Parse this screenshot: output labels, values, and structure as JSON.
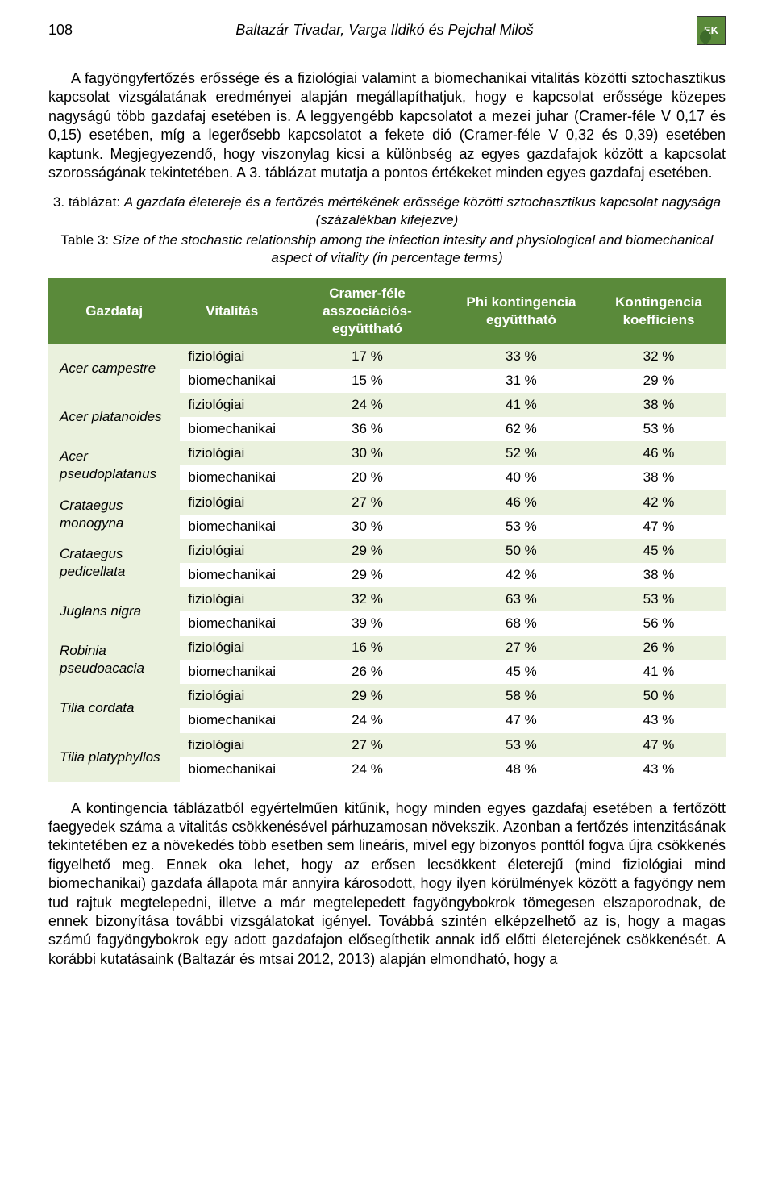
{
  "header": {
    "page_number": "108",
    "authors": "Baltazár Tivadar, Varga Ildikó és Pejchal Miloš",
    "logo_text": "EK"
  },
  "paragraphs": {
    "p1": "A fagyöngyfertőzés erőssége és a fiziológiai valamint a biomechanikai vitalitás közötti sztochasztikus kapcsolat vizsgálatának eredményei alapján megállapíthatjuk, hogy e kapcsolat erőssége közepes nagyságú több gazdafaj esetében is. A leggyengébb kapcsolatot a mezei juhar (Cramer-féle V 0,17 és 0,15) esetében, míg a legerősebb kapcsolatot a fekete dió (Cramer-féle V 0,32 és 0,39) esetében kaptunk. Megjegyezendő, hogy viszonylag kicsi a különbség az egyes gazdafajok között a kapcsolat szorosságának tekintetében. A 3. táblázat mutatja a pontos értékeket minden egyes gazdafaj esetében.",
    "p2": "A kontingencia táblázatból egyértelműen kitűnik, hogy minden egyes gazdafaj esetében a fertőzött faegyedek száma a vitalitás csökkenésével párhuzamosan növekszik. Azonban a fertőzés intenzitásának tekintetében ez a növekedés több esetben sem lineáris, mivel egy bizonyos ponttól fogva újra csökkenés figyelhető meg. Ennek oka lehet, hogy az erősen lecsökkent életerejű (mind fiziológiai mind biomechanikai) gazdafa állapota már annyira károsodott, hogy ilyen körülmények között a fagyöngy nem tud rajtuk megtelepedni, illetve a már megtelepedett fagyöngybokrok tömegesen elszaporodnak, de ennek bizonyítása további vizsgálatokat igényel. Továbbá szintén elképzelhető az is, hogy a magas számú fagyöngybokrok egy adott gazdafajon elősegíthetik annak idő előtti életerejének csökkenését. A korábbi kutatásaink (Baltazár és mtsai 2012, 2013) alapján elmondható, hogy a"
  },
  "table_caption": {
    "hu_label": "3. táblázat:",
    "hu_text": "A gazdafa életereje és a fertőzés mértékének erőssége közötti sztochasztikus kapcsolat nagysága (százalékban kifejezve)",
    "en_label": "Table 3:",
    "en_text": "Size of the stochastic relationship among the infection intesity and physiological and biomechanical aspect of vitality (in percentage terms)"
  },
  "table": {
    "headers": {
      "col1": "Gazdafaj",
      "col2": "Vitalitás",
      "col3": "Cramer-féle asszociációs-együttható",
      "col4": "Phi kontingencia együttható",
      "col5": "Kontingencia koefficiens"
    },
    "colors": {
      "header_bg": "#5a8a3a",
      "header_fg": "#ffffff",
      "row_odd_bg": "#eaf1dd",
      "row_even_bg": "#ffffff"
    },
    "species": [
      {
        "name": "Acer campestre",
        "rows": [
          {
            "vitalitas": "fiziológiai",
            "cramer": "17 %",
            "phi": "33 %",
            "kont": "32 %"
          },
          {
            "vitalitas": "biomechanikai",
            "cramer": "15 %",
            "phi": "31 %",
            "kont": "29 %"
          }
        ]
      },
      {
        "name": "Acer platanoides",
        "rows": [
          {
            "vitalitas": "fiziológiai",
            "cramer": "24 %",
            "phi": "41 %",
            "kont": "38 %"
          },
          {
            "vitalitas": "biomechanikai",
            "cramer": "36 %",
            "phi": "62 %",
            "kont": "53 %"
          }
        ]
      },
      {
        "name": "Acer pseudoplatanus",
        "rows": [
          {
            "vitalitas": "fiziológiai",
            "cramer": "30 %",
            "phi": "52 %",
            "kont": "46 %"
          },
          {
            "vitalitas": "biomechanikai",
            "cramer": "20 %",
            "phi": "40 %",
            "kont": "38 %"
          }
        ]
      },
      {
        "name": "Crataegus monogyna",
        "rows": [
          {
            "vitalitas": "fiziológiai",
            "cramer": "27 %",
            "phi": "46 %",
            "kont": "42 %"
          },
          {
            "vitalitas": "biomechanikai",
            "cramer": "30 %",
            "phi": "53 %",
            "kont": "47 %"
          }
        ]
      },
      {
        "name": "Crataegus pedicellata",
        "rows": [
          {
            "vitalitas": "fiziológiai",
            "cramer": "29 %",
            "phi": "50 %",
            "kont": "45 %"
          },
          {
            "vitalitas": "biomechanikai",
            "cramer": "29 %",
            "phi": "42 %",
            "kont": "38 %"
          }
        ]
      },
      {
        "name": "Juglans nigra",
        "rows": [
          {
            "vitalitas": "fiziológiai",
            "cramer": "32 %",
            "phi": "63 %",
            "kont": "53 %"
          },
          {
            "vitalitas": "biomechanikai",
            "cramer": "39 %",
            "phi": "68 %",
            "kont": "56 %"
          }
        ]
      },
      {
        "name": "Robinia pseudoacacia",
        "rows": [
          {
            "vitalitas": "fiziológiai",
            "cramer": "16 %",
            "phi": "27 %",
            "kont": "26 %"
          },
          {
            "vitalitas": "biomechanikai",
            "cramer": "26 %",
            "phi": "45 %",
            "kont": "41 %"
          }
        ]
      },
      {
        "name": "Tilia cordata",
        "rows": [
          {
            "vitalitas": "fiziológiai",
            "cramer": "29 %",
            "phi": "58 %",
            "kont": "50 %"
          },
          {
            "vitalitas": "biomechanikai",
            "cramer": "24 %",
            "phi": "47 %",
            "kont": "43 %"
          }
        ]
      },
      {
        "name": "Tilia platyphyllos",
        "rows": [
          {
            "vitalitas": "fiziológiai",
            "cramer": "27 %",
            "phi": "53 %",
            "kont": "47 %"
          },
          {
            "vitalitas": "biomechanikai",
            "cramer": "24 %",
            "phi": "48 %",
            "kont": "43 %"
          }
        ]
      }
    ]
  }
}
